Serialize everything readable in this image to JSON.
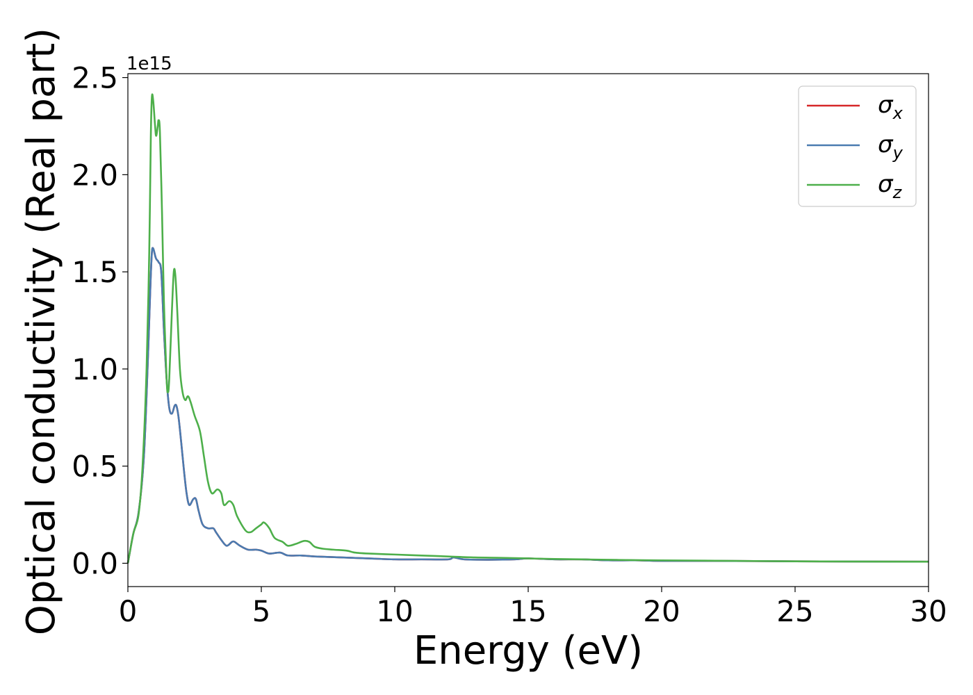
{
  "chart_data": {
    "type": "line",
    "xlabel": "Energy (eV)",
    "ylabel": "Optical conductivity (Real part)",
    "y_offset_text": "1e15",
    "y_scale": 1000000000000000.0,
    "xlim": [
      0,
      30
    ],
    "ylim": [
      -0.12,
      2.52
    ],
    "xticks": [
      0,
      5,
      10,
      15,
      20,
      25,
      30
    ],
    "xtick_labels": [
      "0",
      "5",
      "10",
      "15",
      "20",
      "25",
      "30"
    ],
    "yticks": [
      0.0,
      0.5,
      1.0,
      1.5,
      2.0,
      2.5
    ],
    "ytick_labels": [
      "0.0",
      "0.5",
      "1.0",
      "1.5",
      "2.0",
      "2.5"
    ],
    "grid": false,
    "legend_position": "top-right",
    "series": [
      {
        "name": "σx",
        "legend_base": "σ",
        "legend_sub": "x",
        "color": "#d62728",
        "points": [
          [
            0,
            0
          ],
          [
            0.2,
            0.15
          ],
          [
            0.4,
            0.26
          ],
          [
            0.6,
            0.55
          ],
          [
            0.75,
            1.05
          ],
          [
            0.85,
            1.45
          ],
          [
            0.9,
            1.6
          ],
          [
            0.95,
            1.62
          ],
          [
            1.05,
            1.57
          ],
          [
            1.15,
            1.55
          ],
          [
            1.25,
            1.5
          ],
          [
            1.35,
            1.2
          ],
          [
            1.45,
            0.95
          ],
          [
            1.55,
            0.8
          ],
          [
            1.65,
            0.77
          ],
          [
            1.75,
            0.81
          ],
          [
            1.82,
            0.81
          ],
          [
            1.9,
            0.75
          ],
          [
            2.0,
            0.62
          ],
          [
            2.1,
            0.48
          ],
          [
            2.2,
            0.36
          ],
          [
            2.3,
            0.3
          ],
          [
            2.45,
            0.33
          ],
          [
            2.55,
            0.33
          ],
          [
            2.65,
            0.27
          ],
          [
            2.8,
            0.2
          ],
          [
            3.0,
            0.18
          ],
          [
            3.2,
            0.18
          ],
          [
            3.3,
            0.16
          ],
          [
            3.5,
            0.12
          ],
          [
            3.7,
            0.09
          ],
          [
            3.9,
            0.11
          ],
          [
            4.0,
            0.11
          ],
          [
            4.2,
            0.09
          ],
          [
            4.5,
            0.07
          ],
          [
            4.8,
            0.07
          ],
          [
            5.0,
            0.065
          ],
          [
            5.3,
            0.05
          ],
          [
            5.7,
            0.055
          ],
          [
            6.0,
            0.04
          ],
          [
            6.5,
            0.04
          ],
          [
            7.0,
            0.035
          ],
          [
            8.0,
            0.03
          ],
          [
            9.0,
            0.025
          ],
          [
            10,
            0.02
          ],
          [
            11,
            0.02
          ],
          [
            12,
            0.02
          ],
          [
            12.2,
            0.03
          ],
          [
            12.6,
            0.02
          ],
          [
            13.5,
            0.018
          ],
          [
            14.5,
            0.02
          ],
          [
            15,
            0.025
          ],
          [
            16,
            0.02
          ],
          [
            17,
            0.02
          ],
          [
            18,
            0.015
          ],
          [
            19,
            0.015
          ],
          [
            20,
            0.012
          ],
          [
            22,
            0.012
          ],
          [
            25,
            0.01
          ],
          [
            27,
            0.009
          ],
          [
            30,
            0.008
          ]
        ]
      },
      {
        "name": "σy",
        "legend_base": "σ",
        "legend_sub": "y",
        "color": "#4a7bb0",
        "points": [
          [
            0,
            0
          ],
          [
            0.2,
            0.15
          ],
          [
            0.4,
            0.26
          ],
          [
            0.6,
            0.55
          ],
          [
            0.75,
            1.05
          ],
          [
            0.85,
            1.45
          ],
          [
            0.9,
            1.6
          ],
          [
            0.95,
            1.62
          ],
          [
            1.05,
            1.57
          ],
          [
            1.15,
            1.55
          ],
          [
            1.25,
            1.5
          ],
          [
            1.35,
            1.2
          ],
          [
            1.45,
            0.95
          ],
          [
            1.55,
            0.8
          ],
          [
            1.65,
            0.77
          ],
          [
            1.75,
            0.81
          ],
          [
            1.82,
            0.81
          ],
          [
            1.9,
            0.75
          ],
          [
            2.0,
            0.62
          ],
          [
            2.1,
            0.48
          ],
          [
            2.2,
            0.36
          ],
          [
            2.3,
            0.3
          ],
          [
            2.45,
            0.33
          ],
          [
            2.55,
            0.33
          ],
          [
            2.65,
            0.27
          ],
          [
            2.8,
            0.2
          ],
          [
            3.0,
            0.18
          ],
          [
            3.2,
            0.18
          ],
          [
            3.3,
            0.16
          ],
          [
            3.5,
            0.12
          ],
          [
            3.7,
            0.09
          ],
          [
            3.9,
            0.11
          ],
          [
            4.0,
            0.11
          ],
          [
            4.2,
            0.09
          ],
          [
            4.5,
            0.07
          ],
          [
            4.8,
            0.07
          ],
          [
            5.0,
            0.065
          ],
          [
            5.3,
            0.05
          ],
          [
            5.7,
            0.055
          ],
          [
            6.0,
            0.04
          ],
          [
            6.5,
            0.04
          ],
          [
            7.0,
            0.035
          ],
          [
            8.0,
            0.03
          ],
          [
            9.0,
            0.025
          ],
          [
            10,
            0.02
          ],
          [
            11,
            0.02
          ],
          [
            12,
            0.02
          ],
          [
            12.2,
            0.03
          ],
          [
            12.6,
            0.02
          ],
          [
            13.5,
            0.018
          ],
          [
            14.5,
            0.02
          ],
          [
            15,
            0.025
          ],
          [
            16,
            0.02
          ],
          [
            17,
            0.02
          ],
          [
            18,
            0.015
          ],
          [
            19,
            0.015
          ],
          [
            20,
            0.012
          ],
          [
            22,
            0.012
          ],
          [
            25,
            0.01
          ],
          [
            27,
            0.009
          ],
          [
            30,
            0.008
          ]
        ]
      },
      {
        "name": "σz",
        "legend_base": "σ",
        "legend_sub": "z",
        "color": "#4daf4a",
        "points": [
          [
            0,
            0
          ],
          [
            0.2,
            0.15
          ],
          [
            0.4,
            0.25
          ],
          [
            0.55,
            0.5
          ],
          [
            0.7,
            1.0
          ],
          [
            0.8,
            1.6
          ],
          [
            0.86,
            2.2
          ],
          [
            0.9,
            2.4
          ],
          [
            0.95,
            2.38
          ],
          [
            1.02,
            2.25
          ],
          [
            1.06,
            2.2
          ],
          [
            1.12,
            2.25
          ],
          [
            1.15,
            2.28
          ],
          [
            1.2,
            2.22
          ],
          [
            1.28,
            1.8
          ],
          [
            1.35,
            1.35
          ],
          [
            1.45,
            0.95
          ],
          [
            1.5,
            0.88
          ],
          [
            1.55,
            0.95
          ],
          [
            1.65,
            1.3
          ],
          [
            1.72,
            1.5
          ],
          [
            1.78,
            1.48
          ],
          [
            1.85,
            1.3
          ],
          [
            1.95,
            1.0
          ],
          [
            2.05,
            0.88
          ],
          [
            2.15,
            0.84
          ],
          [
            2.25,
            0.86
          ],
          [
            2.35,
            0.83
          ],
          [
            2.5,
            0.76
          ],
          [
            2.7,
            0.68
          ],
          [
            2.85,
            0.55
          ],
          [
            3.0,
            0.42
          ],
          [
            3.15,
            0.36
          ],
          [
            3.35,
            0.38
          ],
          [
            3.5,
            0.36
          ],
          [
            3.6,
            0.3
          ],
          [
            3.8,
            0.32
          ],
          [
            3.95,
            0.3
          ],
          [
            4.1,
            0.24
          ],
          [
            4.4,
            0.17
          ],
          [
            4.6,
            0.16
          ],
          [
            4.8,
            0.18
          ],
          [
            5.0,
            0.2
          ],
          [
            5.1,
            0.21
          ],
          [
            5.3,
            0.18
          ],
          [
            5.5,
            0.13
          ],
          [
            5.8,
            0.11
          ],
          [
            6.0,
            0.09
          ],
          [
            6.3,
            0.1
          ],
          [
            6.6,
            0.115
          ],
          [
            6.8,
            0.11
          ],
          [
            7.0,
            0.085
          ],
          [
            7.3,
            0.075
          ],
          [
            7.7,
            0.07
          ],
          [
            8.2,
            0.065
          ],
          [
            8.5,
            0.055
          ],
          [
            9.0,
            0.05
          ],
          [
            10,
            0.045
          ],
          [
            11,
            0.04
          ],
          [
            12,
            0.035
          ],
          [
            13,
            0.03
          ],
          [
            14,
            0.028
          ],
          [
            15,
            0.025
          ],
          [
            16,
            0.022
          ],
          [
            17,
            0.02
          ],
          [
            18,
            0.018
          ],
          [
            19,
            0.016
          ],
          [
            20,
            0.015
          ],
          [
            22,
            0.013
          ],
          [
            25,
            0.01
          ],
          [
            27,
            0.009
          ],
          [
            30,
            0.008
          ]
        ]
      }
    ]
  }
}
